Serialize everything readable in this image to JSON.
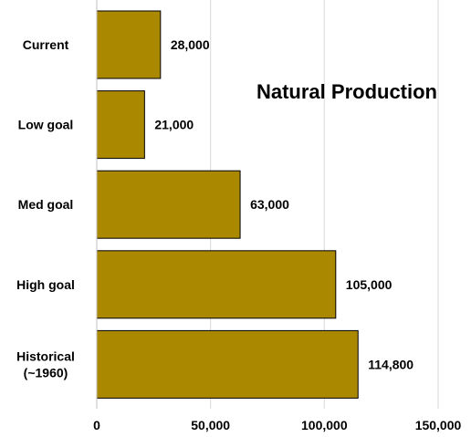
{
  "chart_data": {
    "type": "bar",
    "orientation": "horizontal",
    "title": "Natural Production",
    "categories": [
      [
        "Current"
      ],
      [
        "Low goal"
      ],
      [
        "Med goal"
      ],
      [
        "High goal"
      ],
      [
        "Historical",
        "(~1960)"
      ]
    ],
    "values": [
      28000,
      21000,
      63000,
      105000,
      114800
    ],
    "data_labels": [
      "28,000",
      "21,000",
      "63,000",
      "105,000",
      "114,800"
    ],
    "xlim": [
      0,
      150000
    ],
    "x_ticks": [
      0,
      50000,
      100000,
      150000
    ],
    "x_tick_labels": [
      "0",
      "50,000",
      "100,000",
      "150,000"
    ],
    "grid": "vertical",
    "bar_color": "#AA8800",
    "bar_edge_color": "#000000",
    "grid_color": "#D9D9D9"
  }
}
